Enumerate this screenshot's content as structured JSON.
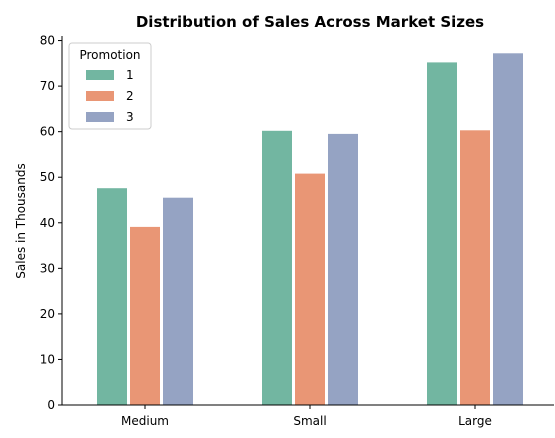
{
  "chart_data": {
    "type": "bar",
    "title": "Distribution of Sales Across Market Sizes",
    "xlabel": "",
    "ylabel": "Sales in Thousands",
    "categories": [
      "Medium",
      "Small",
      "Large"
    ],
    "series": [
      {
        "name": "1",
        "values": [
          47.6,
          60.2,
          75.2
        ],
        "color": "#72b6a1"
      },
      {
        "name": "2",
        "values": [
          39.1,
          50.8,
          60.3
        ],
        "color": "#e99675"
      },
      {
        "name": "3",
        "values": [
          45.5,
          59.5,
          77.2
        ],
        "color": "#95a3c3"
      }
    ],
    "ylim": [
      0,
      81
    ],
    "yticks": [
      0,
      10,
      20,
      30,
      40,
      50,
      60,
      70,
      80
    ],
    "grid": false,
    "legend": {
      "title": "Promotion",
      "placement": "top-left"
    }
  }
}
